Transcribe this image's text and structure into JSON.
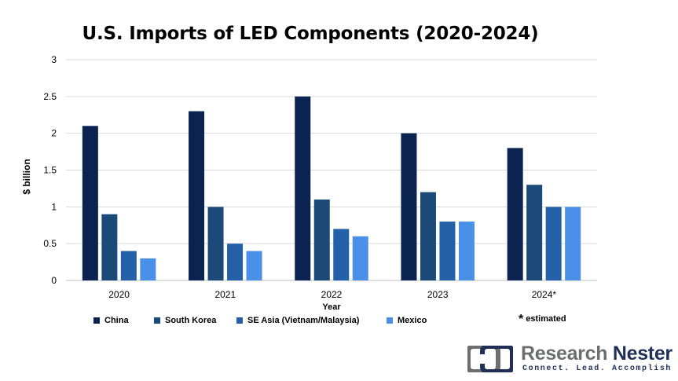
{
  "title": "U.S. Imports of LED Components (2020-2024)",
  "note": {
    "symbol": "*",
    "text": "estimated"
  },
  "logo": {
    "name_part1": "Research",
    "name_part2": "Nester",
    "tagline": "Connect. Lead. Accomplish"
  },
  "chart_data": {
    "type": "bar",
    "title": "U.S. Imports of LED Components (2020-2024)",
    "xlabel": "Year",
    "ylabel": "$ billion",
    "categories": [
      "2020",
      "2021",
      "2022",
      "2023",
      "2024*"
    ],
    "series": [
      {
        "name": "China",
        "color": "#0a2350",
        "values": [
          2.1,
          2.3,
          2.5,
          2.0,
          1.8
        ]
      },
      {
        "name": "South Korea",
        "color": "#1b4a78",
        "values": [
          0.9,
          1.0,
          1.1,
          1.2,
          1.3
        ]
      },
      {
        "name": "SE Asia (Vietnam/Malaysia)",
        "color": "#2460a7",
        "values": [
          0.4,
          0.5,
          0.7,
          0.8,
          1.0
        ]
      },
      {
        "name": "Mexico",
        "color": "#4a90e8",
        "values": [
          0.3,
          0.4,
          0.6,
          0.8,
          1.0
        ]
      }
    ],
    "ylim": [
      0,
      3
    ],
    "yticks": [
      "0",
      "0.5",
      "1",
      "1.5",
      "2",
      "2.5",
      "3"
    ],
    "grid": true,
    "legend_position": "bottom"
  }
}
